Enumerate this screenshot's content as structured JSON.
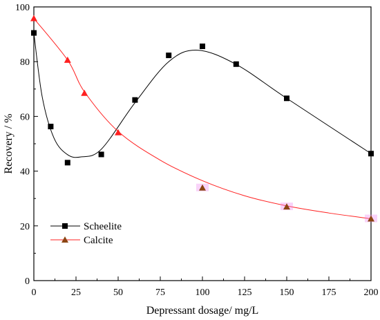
{
  "chart_data": {
    "type": "scatter",
    "xlabel": "Depressant dosage/ mg/L",
    "ylabel": "Recovery / %",
    "xlim": [
      0,
      200
    ],
    "ylim": [
      0,
      100
    ],
    "x_ticks": [
      0,
      25,
      50,
      75,
      100,
      125,
      150,
      175,
      200
    ],
    "y_ticks": [
      0,
      20,
      40,
      60,
      80,
      100
    ],
    "grid": false,
    "legend_position": "bottom-left",
    "series": [
      {
        "name": "Scheelite",
        "marker": "square",
        "color": "#000000",
        "line_color": "#000000",
        "marker_shadow": "",
        "x": [
          0,
          10,
          20,
          40,
          60,
          80,
          100,
          120,
          150,
          200
        ],
        "y": [
          90.5,
          56.3,
          43.1,
          46.1,
          66.0,
          82.3,
          85.6,
          79.1,
          66.6,
          46.4
        ]
      },
      {
        "name": "Calcite",
        "marker": "triangle",
        "color": "#ff2020",
        "line_color": "#ff2020",
        "legend_color": "#8b4513",
        "late_color": "#8b4513",
        "marker_shadow": "#ee82ee",
        "x": [
          0,
          20,
          30,
          50,
          100,
          150,
          200
        ],
        "y": [
          95.8,
          80.6,
          68.5,
          54.1,
          33.9,
          27.0,
          22.6
        ]
      }
    ]
  }
}
